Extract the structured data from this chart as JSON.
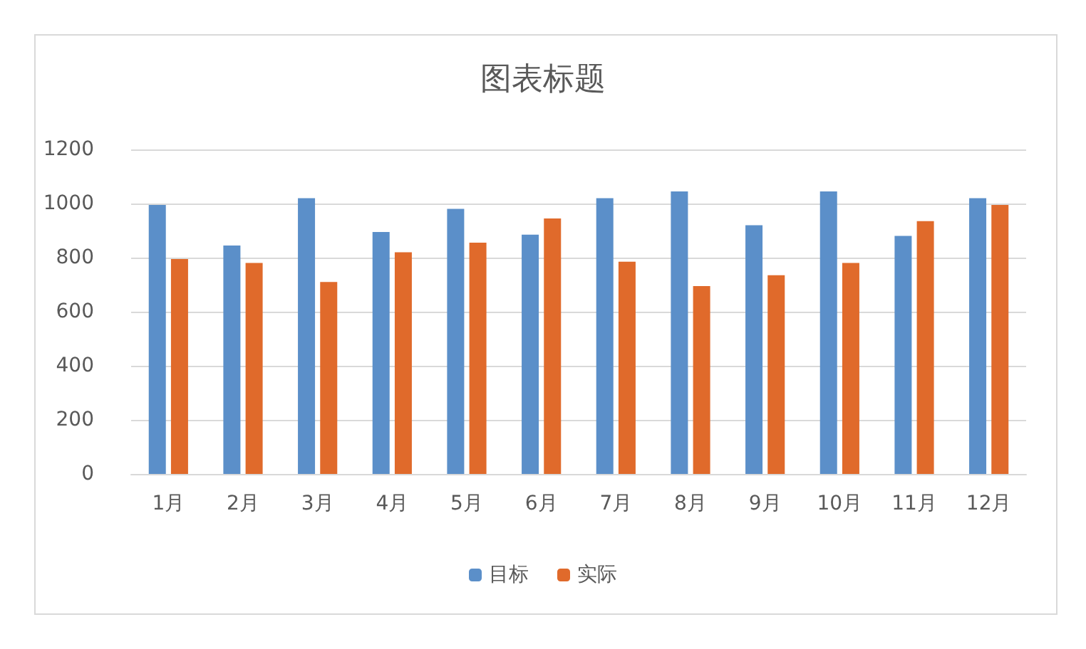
{
  "chart_data": {
    "type": "bar",
    "title": "图表标题",
    "categories": [
      "1月",
      "2月",
      "3月",
      "4月",
      "5月",
      "6月",
      "7月",
      "8月",
      "9月",
      "10月",
      "11月",
      "12月"
    ],
    "series": [
      {
        "name": "目标",
        "color": "#5b8fc9",
        "values": [
          995,
          845,
          1020,
          895,
          980,
          885,
          1020,
          1045,
          920,
          1045,
          880,
          1020
        ]
      },
      {
        "name": "实际",
        "color": "#e06a2b",
        "values": [
          795,
          780,
          710,
          820,
          855,
          945,
          785,
          695,
          735,
          780,
          935,
          995
        ]
      }
    ],
    "ylim": [
      0,
      1200
    ],
    "yticks": [
      0,
      200,
      400,
      600,
      800,
      1000,
      1200
    ],
    "grid": "y",
    "legend": "bottom"
  }
}
